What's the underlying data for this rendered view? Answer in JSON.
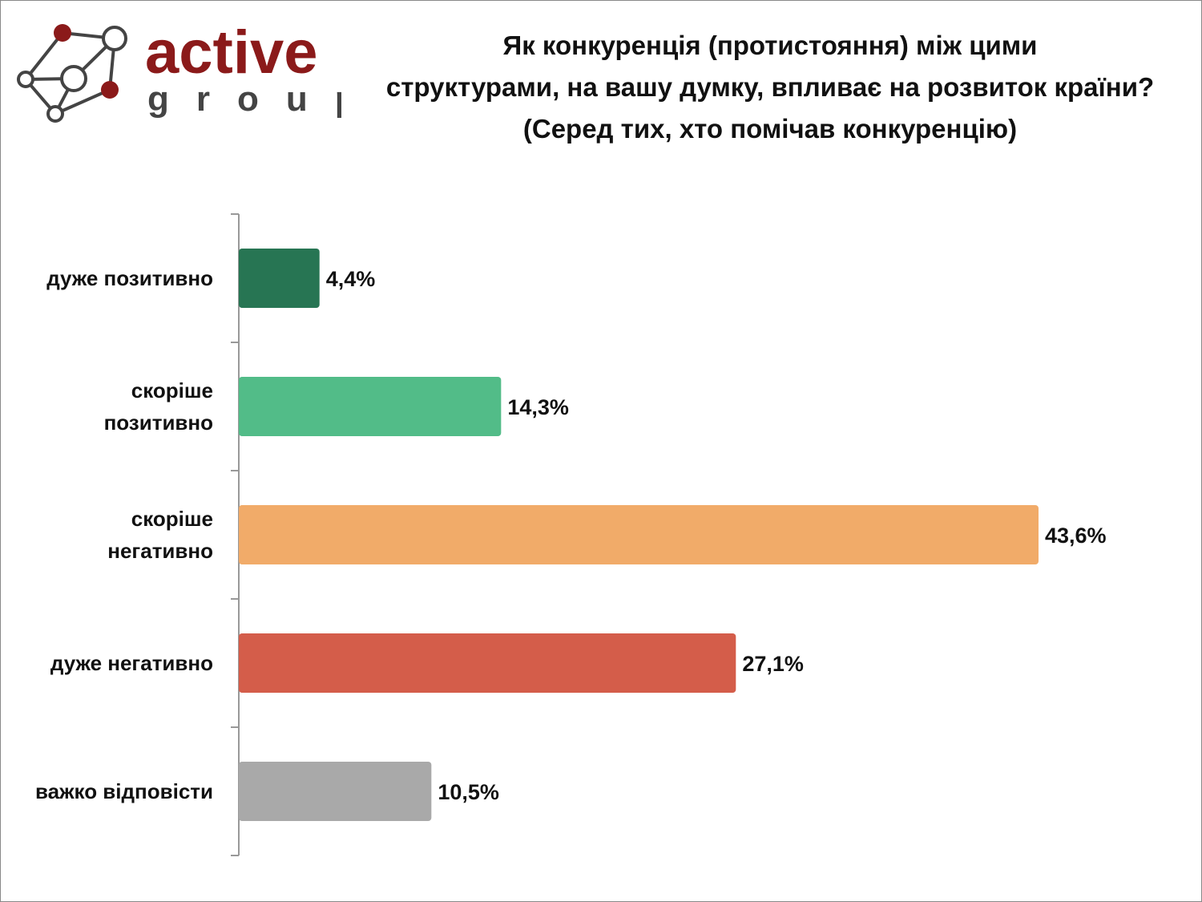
{
  "logo": {
    "text_main": "active",
    "text_sub": "group",
    "color": "#8b1a1a"
  },
  "title": {
    "lines": [
      "Як конкуренція (протистояння) між цими",
      "структурами, на вашу думку, впливає на розвиток країни?",
      "(Серед тих, хто помічав конкуренцію)"
    ]
  },
  "chart_data": {
    "type": "bar",
    "orientation": "horizontal",
    "categories": [
      [
        "дуже позитивно"
      ],
      [
        "скоріше",
        "позитивно"
      ],
      [
        "скоріше",
        "негативно"
      ],
      [
        "дуже негативно"
      ],
      [
        "важко відповісти"
      ]
    ],
    "values": [
      4.4,
      14.3,
      43.6,
      27.1,
      10.5
    ],
    "data_labels": [
      "4,4%",
      "14,3%",
      "43,6%",
      "27,1%",
      "10,5%"
    ],
    "colors": [
      "#277553",
      "#52bc88",
      "#f1ab69",
      "#d45d4a",
      "#a9a9a9"
    ],
    "xlim": [
      0,
      45
    ],
    "grid": false,
    "legend": "none"
  }
}
